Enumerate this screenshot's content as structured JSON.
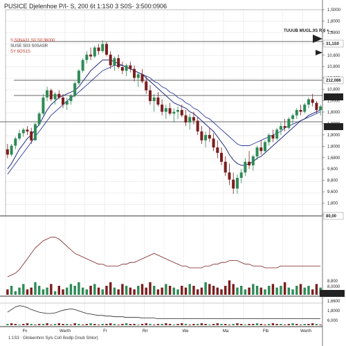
{
  "header": {
    "title": "PUSICE Djelenhoe P/I- S, 200 6t 1:1S0 3 S0S- 3:500:0906"
  },
  "annotations": [
    {
      "text": "S.S0NA31 S0 S0:36000",
      "style": "red"
    },
    {
      "text": "SUSE S03 S0SASR",
      "style": "dark"
    },
    {
      "text": "SY 6OS1S",
      "style": "red"
    }
  ],
  "legend": {
    "text": "TUUUB MUGL.9S R 6 +..."
  },
  "footer": {
    "text": "1:1S3 · Glnleenhnn Syls Co0 Bodlp Gnub Slnlor)"
  },
  "colors": {
    "up": "#2e8b57",
    "down": "#7b1e1e",
    "ma_fast": "#1f2a7a",
    "ma_slow": "#2a3a9a",
    "grid": "#e6e6e6",
    "level": "#333333",
    "price_box": "#222222",
    "price_box_red": "#c0392b"
  },
  "price_panel": {
    "y_ticks": [
      "1,S000",
      "1,8000",
      "1,8800",
      "1,2000",
      "10,800",
      "10,800",
      "10,800",
      "10,800",
      "1,0000",
      "1,8000",
      "1,8000",
      "1,8000",
      "1,8000",
      "1,6800",
      "9,600",
      "8,800",
      "9,600",
      "1,800",
      "1,800"
    ],
    "level_tags": [
      {
        "text": "31,1S0",
        "style": "red"
      },
      {
        "text": "212,086",
        "style": "dark"
      },
      {
        "text": "30,966",
        "style": "box"
      },
      {
        "text": "Cmne",
        "style": "box"
      },
      {
        "text": "80,00",
        "style": "dark"
      }
    ]
  },
  "volume_panel": {
    "y_ticks": [
      "8,800",
      "8,0000"
    ],
    "last_value": "33,712"
  },
  "osc_panel": {
    "y_ticks": [
      "1,6600",
      "1,8000",
      "6,000"
    ]
  },
  "x_ticks": [
    "Fn",
    "Werth",
    "Fr",
    "Rrr",
    "We",
    "Ma",
    "Flb",
    "Werth"
  ],
  "chart_data": {
    "type": "candlestick",
    "title": "PUSICE Djelenhoe P/I- S, 200 6t 1:1S0 3 S0S- 3:500:0906",
    "ylim": [
      0,
      100
    ],
    "candles": [
      [
        35,
        38,
        30,
        32
      ],
      [
        32,
        38,
        31,
        37
      ],
      [
        37,
        42,
        35,
        41
      ],
      [
        41,
        46,
        40,
        44
      ],
      [
        44,
        47,
        42,
        46
      ],
      [
        46,
        48,
        43,
        45
      ],
      [
        45,
        47,
        38,
        40
      ],
      [
        40,
        50,
        40,
        49
      ],
      [
        49,
        56,
        48,
        55
      ],
      [
        55,
        66,
        54,
        64
      ],
      [
        64,
        70,
        62,
        68
      ],
      [
        68,
        69,
        62,
        63
      ],
      [
        63,
        67,
        60,
        66
      ],
      [
        66,
        68,
        63,
        64
      ],
      [
        64,
        66,
        58,
        60
      ],
      [
        60,
        64,
        57,
        62
      ],
      [
        62,
        66,
        60,
        65
      ],
      [
        65,
        73,
        64,
        72
      ],
      [
        72,
        80,
        71,
        79
      ],
      [
        79,
        86,
        78,
        85
      ],
      [
        85,
        90,
        83,
        88
      ],
      [
        88,
        92,
        85,
        87
      ],
      [
        87,
        93,
        86,
        92
      ],
      [
        92,
        94,
        88,
        90
      ],
      [
        90,
        96,
        89,
        94
      ],
      [
        94,
        95,
        87,
        88
      ],
      [
        88,
        90,
        80,
        82
      ],
      [
        82,
        87,
        79,
        86
      ],
      [
        86,
        88,
        80,
        81
      ],
      [
        81,
        84,
        77,
        79
      ],
      [
        79,
        83,
        76,
        82
      ],
      [
        82,
        84,
        78,
        80
      ],
      [
        80,
        82,
        73,
        75
      ],
      [
        75,
        78,
        70,
        77
      ],
      [
        77,
        80,
        72,
        73
      ],
      [
        73,
        76,
        66,
        68
      ],
      [
        68,
        71,
        60,
        62
      ],
      [
        62,
        66,
        56,
        64
      ],
      [
        64,
        67,
        59,
        60
      ],
      [
        60,
        63,
        54,
        56
      ],
      [
        56,
        60,
        52,
        58
      ],
      [
        58,
        61,
        54,
        55
      ],
      [
        55,
        58,
        50,
        56
      ],
      [
        56,
        59,
        52,
        57
      ],
      [
        57,
        60,
        53,
        54
      ],
      [
        54,
        57,
        48,
        50
      ],
      [
        50,
        55,
        46,
        53
      ],
      [
        53,
        56,
        49,
        51
      ],
      [
        51,
        53,
        43,
        45
      ],
      [
        45,
        48,
        38,
        40
      ],
      [
        40,
        45,
        36,
        43
      ],
      [
        43,
        47,
        39,
        41
      ],
      [
        41,
        44,
        34,
        36
      ],
      [
        36,
        40,
        30,
        33
      ],
      [
        33,
        36,
        26,
        28
      ],
      [
        28,
        31,
        20,
        22
      ],
      [
        22,
        27,
        15,
        18
      ],
      [
        18,
        22,
        10,
        13
      ],
      [
        13,
        21,
        10,
        19
      ],
      [
        19,
        24,
        16,
        22
      ],
      [
        22,
        30,
        20,
        28
      ],
      [
        28,
        34,
        24,
        26
      ],
      [
        26,
        32,
        23,
        31
      ],
      [
        31,
        37,
        29,
        36
      ],
      [
        36,
        40,
        32,
        34
      ],
      [
        34,
        40,
        33,
        39
      ],
      [
        39,
        44,
        37,
        43
      ],
      [
        43,
        46,
        39,
        41
      ],
      [
        41,
        47,
        40,
        46
      ],
      [
        46,
        50,
        43,
        48
      ],
      [
        48,
        52,
        45,
        47
      ],
      [
        47,
        53,
        46,
        52
      ],
      [
        52,
        55,
        49,
        54
      ],
      [
        54,
        58,
        52,
        57
      ],
      [
        57,
        60,
        54,
        56
      ],
      [
        56,
        61,
        55,
        60
      ],
      [
        60,
        64,
        58,
        63
      ],
      [
        63,
        66,
        59,
        61
      ],
      [
        61,
        62,
        55,
        57
      ],
      [
        57,
        60,
        54,
        59
      ]
    ],
    "ma_fast": [
      24,
      27,
      31,
      35,
      38,
      41,
      43,
      46,
      49,
      53,
      57,
      60,
      62,
      64,
      65,
      66,
      67,
      68,
      70,
      73,
      76,
      79,
      81,
      83,
      85,
      85,
      85,
      84,
      83,
      82,
      81,
      80,
      79,
      78,
      77,
      75,
      73,
      71,
      69,
      67,
      65,
      63,
      61,
      60,
      59,
      58,
      56,
      55,
      53,
      51,
      49,
      47,
      45,
      42,
      39,
      36,
      32,
      29,
      27,
      26,
      26,
      27,
      28,
      30,
      31,
      33,
      35,
      37,
      39,
      41,
      43,
      45,
      47,
      49,
      51,
      52,
      54,
      55,
      56,
      57
    ],
    "ma_slow": [
      21,
      24,
      27,
      30,
      33,
      36,
      39,
      42,
      45,
      48,
      51,
      54,
      56,
      58,
      60,
      62,
      64,
      65,
      67,
      69,
      71,
      73,
      75,
      77,
      79,
      80,
      81,
      82,
      82,
      82,
      81,
      80,
      79,
      78,
      77,
      76,
      75,
      73,
      72,
      70,
      69,
      67,
      66,
      64,
      63,
      61,
      60,
      58,
      57,
      55,
      53,
      52,
      50,
      48,
      46,
      44,
      42,
      40,
      38,
      37,
      37,
      37,
      38,
      39,
      40,
      41,
      42,
      43,
      44,
      45,
      47,
      48,
      49,
      50,
      51,
      52,
      53,
      54,
      55,
      56
    ],
    "volume": [
      3,
      5,
      2,
      4,
      6,
      3,
      4,
      7,
      5,
      3,
      4,
      6,
      2,
      5,
      3,
      4,
      6,
      5,
      7,
      4,
      3,
      5,
      6,
      4,
      3,
      5,
      7,
      4,
      3,
      6,
      5,
      4,
      3,
      5,
      6,
      4,
      7,
      5,
      3,
      4,
      6,
      5,
      4,
      3,
      5,
      4,
      6,
      5,
      3,
      4,
      7,
      6,
      5,
      4,
      3,
      5,
      8,
      6,
      4,
      5,
      3,
      4,
      6,
      5,
      4,
      3,
      5,
      6,
      4,
      5,
      7,
      4,
      3,
      5,
      6,
      4,
      5,
      3,
      6,
      4
    ],
    "volume_line": [
      10,
      11,
      12,
      14,
      17,
      20,
      23,
      26,
      28,
      30,
      31,
      32,
      32,
      31,
      29,
      27,
      25,
      23,
      22,
      21,
      20,
      19,
      18,
      17,
      17,
      16,
      16,
      16,
      16,
      17,
      17,
      18,
      18,
      19,
      20,
      21,
      22,
      23,
      22,
      21,
      20,
      19,
      18,
      17,
      16,
      16,
      15,
      15,
      15,
      15,
      16,
      16,
      17,
      17,
      18,
      18,
      19,
      19,
      19,
      18,
      17,
      17,
      16,
      16,
      16,
      15,
      15,
      15,
      15,
      16,
      16,
      16,
      16,
      16,
      16,
      16,
      16,
      16,
      16,
      16
    ],
    "osc": [
      20,
      24,
      28,
      30,
      29,
      27,
      24,
      22,
      20,
      19,
      18,
      18,
      19,
      21,
      23,
      24,
      25,
      24,
      22,
      20,
      18,
      17,
      16,
      15,
      15,
      14,
      14,
      13,
      13,
      13,
      12,
      12,
      12,
      12,
      11,
      11,
      11,
      11,
      10,
      10,
      10,
      10,
      10,
      10,
      10,
      10,
      10,
      10,
      10,
      10,
      10,
      10,
      10,
      10,
      10,
      10,
      10,
      10,
      10,
      10,
      10,
      10,
      10,
      10,
      10,
      10,
      10,
      10,
      10,
      10,
      10,
      10,
      10,
      10,
      10,
      10,
      10,
      10,
      10,
      10
    ],
    "osc_hist": [
      2,
      3,
      2,
      1,
      2,
      3,
      2,
      1,
      2,
      2,
      3,
      1,
      2,
      3,
      2,
      2,
      1,
      3,
      2,
      1,
      2,
      3,
      2,
      1,
      2,
      2,
      3,
      2,
      1,
      2,
      3,
      2,
      2,
      1,
      2,
      3,
      2,
      1,
      2,
      2,
      3,
      2,
      1,
      2,
      3,
      2,
      1,
      2,
      2,
      3,
      2,
      1,
      2,
      3,
      2,
      2,
      1,
      2,
      3,
      2,
      1,
      2,
      2,
      3,
      2,
      1,
      2,
      3,
      2,
      2,
      1,
      2,
      3,
      2,
      1,
      2,
      2,
      3,
      2,
      1
    ]
  }
}
